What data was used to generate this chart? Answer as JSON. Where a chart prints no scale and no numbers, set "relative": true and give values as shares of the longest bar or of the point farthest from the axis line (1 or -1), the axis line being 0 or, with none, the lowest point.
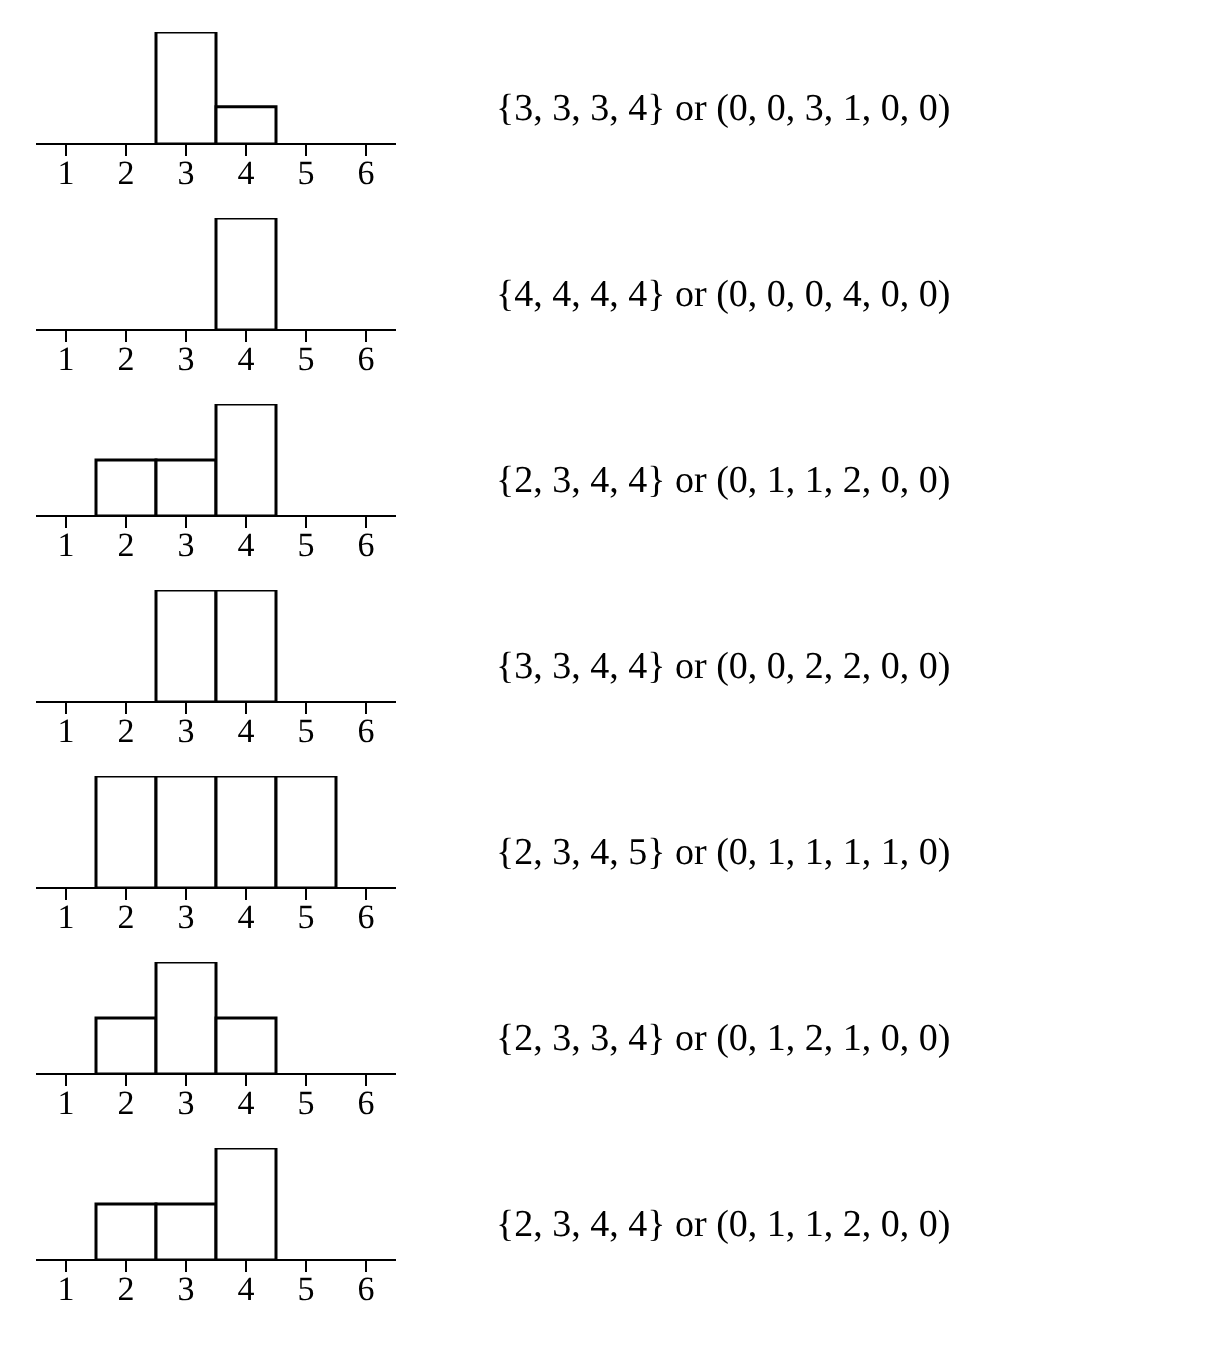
{
  "chart_data": [
    {
      "type": "bar",
      "categories": [
        "1",
        "2",
        "3",
        "4",
        "5",
        "6"
      ],
      "values": [
        0,
        0,
        1,
        0.333,
        0,
        0
      ],
      "color": "#ffffff",
      "relative": true,
      "annotations": [
        "{3, 3, 3, 4} or (0, 0, 3, 1, 0, 0)"
      ]
    },
    {
      "type": "bar",
      "categories": [
        "1",
        "2",
        "3",
        "4",
        "5",
        "6"
      ],
      "values": [
        0,
        0,
        0,
        1,
        0,
        0
      ],
      "color": "#ffffff",
      "relative": true,
      "annotations": [
        "{4, 4, 4, 4} or (0, 0, 0, 4, 0, 0)"
      ]
    },
    {
      "type": "bar",
      "categories": [
        "1",
        "2",
        "3",
        "4",
        "5",
        "6"
      ],
      "values": [
        0,
        0.5,
        0.5,
        1,
        0,
        0
      ],
      "color": "#ffffff",
      "relative": true,
      "annotations": [
        "{2, 3, 4, 4} or (0, 1, 1, 2, 0, 0)"
      ]
    },
    {
      "type": "bar",
      "categories": [
        "1",
        "2",
        "3",
        "4",
        "5",
        "6"
      ],
      "values": [
        0,
        0,
        1,
        1,
        0,
        0
      ],
      "color": "#ffffff",
      "relative": true,
      "annotations": [
        "{3, 3, 4, 4} or (0, 0, 2, 2, 0, 0)"
      ]
    },
    {
      "type": "bar",
      "categories": [
        "1",
        "2",
        "3",
        "4",
        "5",
        "6"
      ],
      "values": [
        0,
        1,
        1,
        1,
        1,
        0
      ],
      "color": "#ffffff",
      "relative": true,
      "annotations": [
        "{2, 3, 4, 5} or (0, 1, 1, 1, 1, 0)"
      ]
    },
    {
      "type": "bar",
      "categories": [
        "1",
        "2",
        "3",
        "4",
        "5",
        "6"
      ],
      "values": [
        0,
        0.5,
        1,
        0.5,
        0,
        0
      ],
      "color": "#ffffff",
      "relative": true,
      "annotations": [
        "{2, 3, 3, 4} or (0, 1, 2, 1, 0, 0)"
      ]
    },
    {
      "type": "bar",
      "categories": [
        "1",
        "2",
        "3",
        "4",
        "5",
        "6"
      ],
      "values": [
        0,
        0.5,
        0.5,
        1,
        0,
        0
      ],
      "color": "#ffffff",
      "relative": true,
      "annotations": [
        "{2, 3, 4, 4} or (0, 1, 1, 2, 0, 0)"
      ]
    }
  ]
}
